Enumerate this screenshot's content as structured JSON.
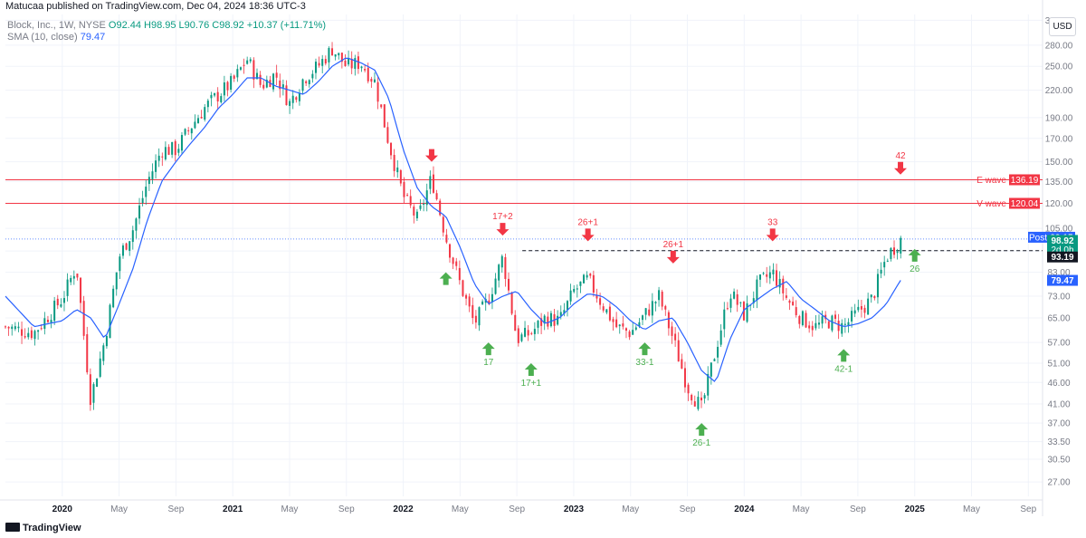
{
  "header": {
    "publisher": "Matucaa published on TradingView.com, Dec 04, 2024 18:36 UTC-3"
  },
  "legend": {
    "symbol": "Block, Inc., 1W, NYSE",
    "ohlc": "O92.44 H98.95 L90.76 C98.92 +10.37 (+11.71%)",
    "sma_label": "SMA (10, close)",
    "sma_value": "79.47"
  },
  "currency_button": "USD",
  "footer": {
    "brand": "TradingView"
  },
  "colors": {
    "up": "#089981",
    "down": "#f23645",
    "sma": "#2962ff",
    "arrow_up": "#4caf50",
    "arrow_down": "#f23645",
    "hline": "#f23645"
  },
  "chart_data": {
    "type": "candlestick",
    "scale": "log",
    "ylim": [
      25,
      330
    ],
    "y_ticks": [
      27.0,
      30.5,
      33.5,
      37.0,
      41.0,
      46.0,
      51.0,
      57.0,
      65.0,
      73.0,
      83.0,
      93.0,
      105.0,
      120.0,
      135.0,
      150.0,
      170.0,
      190.0,
      220.0,
      250.0,
      280.0,
      320.0
    ],
    "x_ticks": [
      "2020",
      "May",
      "Sep",
      "2021",
      "May",
      "Sep",
      "2022",
      "May",
      "Sep",
      "2023",
      "May",
      "Sep",
      "2024",
      "May",
      "Sep",
      "2025",
      "May",
      "Sep"
    ],
    "x_tick_dates": [
      "2020-01",
      "2020-05",
      "2020-09",
      "2021-01",
      "2021-05",
      "2021-09",
      "2022-01",
      "2022-05",
      "2022-09",
      "2023-01",
      "2023-05",
      "2023-09",
      "2024-01",
      "2024-05",
      "2024-09",
      "2025-01",
      "2025-05",
      "2025-09"
    ],
    "x_range": [
      "2019-09",
      "2025-10"
    ],
    "price_path": [
      [
        "2019-09",
        62
      ],
      [
        "2019-11",
        60
      ],
      [
        "2020-01",
        72
      ],
      [
        "2020-02",
        86
      ],
      [
        "2020-03",
        42
      ],
      [
        "2020-04",
        58
      ],
      [
        "2020-05",
        90
      ],
      [
        "2020-06",
        105
      ],
      [
        "2020-07",
        135
      ],
      [
        "2020-08",
        160
      ],
      [
        "2020-09",
        160
      ],
      [
        "2020-10",
        180
      ],
      [
        "2020-11",
        200
      ],
      [
        "2020-12",
        215
      ],
      [
        "2021-01",
        230
      ],
      [
        "2021-02",
        260
      ],
      [
        "2021-03",
        225
      ],
      [
        "2021-04",
        240
      ],
      [
        "2021-05",
        205
      ],
      [
        "2021-06",
        235
      ],
      [
        "2021-07",
        250
      ],
      [
        "2021-08",
        275
      ],
      [
        "2021-09",
        250
      ],
      [
        "2021-10",
        255
      ],
      [
        "2021-11",
        230
      ],
      [
        "2021-12",
        165
      ],
      [
        "2022-01",
        125
      ],
      [
        "2022-02",
        110
      ],
      [
        "2022-03",
        138
      ],
      [
        "2022-04",
        100
      ],
      [
        "2022-05",
        78
      ],
      [
        "2022-06",
        63
      ],
      [
        "2022-07",
        72
      ],
      [
        "2022-08",
        90
      ],
      [
        "2022-09",
        58
      ],
      [
        "2022-10",
        60
      ],
      [
        "2022-11",
        65
      ],
      [
        "2022-12",
        64
      ],
      [
        "2023-01",
        75
      ],
      [
        "2023-02",
        80
      ],
      [
        "2023-03",
        70
      ],
      [
        "2023-04",
        62
      ],
      [
        "2023-05",
        60
      ],
      [
        "2023-06",
        66
      ],
      [
        "2023-07",
        73
      ],
      [
        "2023-08",
        58
      ],
      [
        "2023-09",
        45
      ],
      [
        "2023-10",
        40
      ],
      [
        "2023-11",
        55
      ],
      [
        "2023-12",
        75
      ],
      [
        "2024-01",
        66
      ],
      [
        "2024-02",
        78
      ],
      [
        "2024-03",
        83
      ],
      [
        "2024-04",
        72
      ],
      [
        "2024-05",
        65
      ],
      [
        "2024-06",
        62
      ],
      [
        "2024-07",
        64
      ],
      [
        "2024-08",
        62
      ],
      [
        "2024-09",
        67
      ],
      [
        "2024-10",
        72
      ],
      [
        "2024-11",
        90
      ],
      [
        "2024-12",
        98.92
      ]
    ],
    "sma_path": [
      [
        "2019-09",
        73
      ],
      [
        "2019-11",
        62
      ],
      [
        "2020-01",
        64
      ],
      [
        "2020-02",
        68
      ],
      [
        "2020-03",
        65
      ],
      [
        "2020-04",
        58
      ],
      [
        "2020-05",
        70
      ],
      [
        "2020-06",
        85
      ],
      [
        "2020-07",
        110
      ],
      [
        "2020-08",
        135
      ],
      [
        "2020-09",
        150
      ],
      [
        "2020-10",
        165
      ],
      [
        "2020-11",
        180
      ],
      [
        "2020-12",
        200
      ],
      [
        "2021-01",
        215
      ],
      [
        "2021-02",
        235
      ],
      [
        "2021-03",
        235
      ],
      [
        "2021-04",
        225
      ],
      [
        "2021-05",
        220
      ],
      [
        "2021-06",
        215
      ],
      [
        "2021-07",
        230
      ],
      [
        "2021-08",
        250
      ],
      [
        "2021-09",
        262
      ],
      [
        "2021-10",
        255
      ],
      [
        "2021-11",
        245
      ],
      [
        "2021-12",
        210
      ],
      [
        "2022-01",
        160
      ],
      [
        "2022-02",
        130
      ],
      [
        "2022-03",
        118
      ],
      [
        "2022-04",
        112
      ],
      [
        "2022-05",
        95
      ],
      [
        "2022-06",
        78
      ],
      [
        "2022-07",
        70
      ],
      [
        "2022-08",
        73
      ],
      [
        "2022-09",
        75
      ],
      [
        "2022-10",
        68
      ],
      [
        "2022-11",
        63
      ],
      [
        "2022-12",
        65
      ],
      [
        "2023-01",
        70
      ],
      [
        "2023-02",
        74
      ],
      [
        "2023-03",
        73
      ],
      [
        "2023-04",
        69
      ],
      [
        "2023-05",
        64
      ],
      [
        "2023-06",
        61
      ],
      [
        "2023-07",
        64
      ],
      [
        "2023-08",
        65
      ],
      [
        "2023-09",
        57
      ],
      [
        "2023-10",
        49
      ],
      [
        "2023-11",
        46
      ],
      [
        "2023-12",
        58
      ],
      [
        "2024-01",
        68
      ],
      [
        "2024-02",
        72
      ],
      [
        "2024-03",
        76
      ],
      [
        "2024-04",
        79
      ],
      [
        "2024-05",
        72
      ],
      [
        "2024-06",
        68
      ],
      [
        "2024-07",
        64
      ],
      [
        "2024-08",
        62
      ],
      [
        "2024-09",
        63
      ],
      [
        "2024-10",
        65
      ],
      [
        "2024-11",
        70
      ],
      [
        "2024-12",
        79.47
      ]
    ],
    "horizontal_lines": [
      {
        "label": "E wave",
        "value": 136.19,
        "price_label": "136.19"
      },
      {
        "label": "V wave",
        "value": 120.04,
        "price_label": "120.04"
      }
    ],
    "resistance_line": {
      "value": 93.19,
      "from": "2022-09",
      "to": "2025-04"
    },
    "post_line": {
      "value": 99.15
    },
    "price_labels": [
      {
        "text": "Post",
        "value_text": "99.15",
        "value": 99.15,
        "kind": "post"
      },
      {
        "text": "98.92",
        "value": 98.92,
        "kind": "last"
      },
      {
        "text": "2d 0h",
        "value": 98.92,
        "kind": "countdown"
      },
      {
        "text": "93.19",
        "value": 93.19,
        "kind": "line"
      },
      {
        "text": "79.47",
        "value": 79.47,
        "kind": "sma"
      }
    ],
    "annotations": [
      {
        "dir": "up",
        "label": "",
        "date": "2022-04",
        "value": 83
      },
      {
        "dir": "down",
        "label": "",
        "date": "2022-03",
        "value": 150
      },
      {
        "dir": "up",
        "label": "17",
        "date": "2022-07",
        "value": 57
      },
      {
        "dir": "down",
        "label": "17+2",
        "date": "2022-08",
        "value": 101
      },
      {
        "dir": "up",
        "label": "17+1",
        "date": "2022-10",
        "value": 51
      },
      {
        "dir": "down",
        "label": "26+1",
        "date": "2023-02",
        "value": 98
      },
      {
        "dir": "up",
        "label": "33-1",
        "date": "2023-06",
        "value": 57
      },
      {
        "dir": "down",
        "label": "26+1",
        "date": "2023-08",
        "value": 87
      },
      {
        "dir": "up",
        "label": "26-1",
        "date": "2023-10",
        "value": 37
      },
      {
        "dir": "down",
        "label": "33",
        "date": "2024-03",
        "value": 98
      },
      {
        "dir": "up",
        "label": "42-1",
        "date": "2024-08",
        "value": 55
      },
      {
        "dir": "down",
        "label": "42",
        "date": "2024-12",
        "value": 140
      },
      {
        "dir": "up",
        "label": "26",
        "date": "2025-01",
        "value": 94
      }
    ]
  }
}
